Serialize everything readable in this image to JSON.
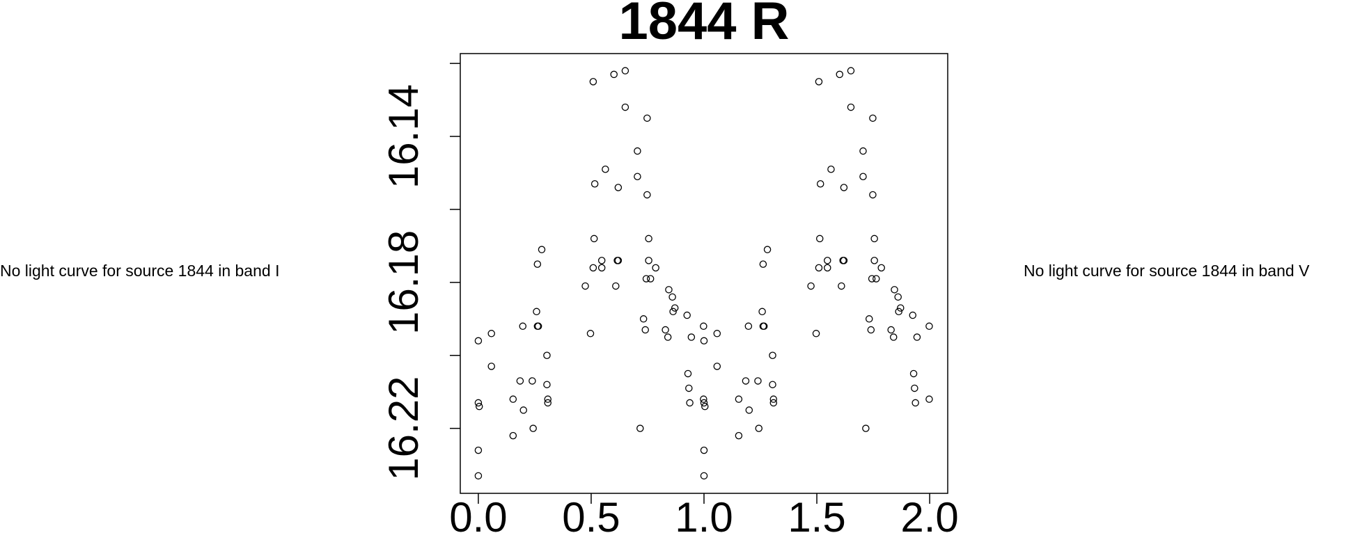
{
  "chart_data": {
    "type": "scatter",
    "title": "1844 R",
    "annotations": [
      "No light curve for source 1844 in band I",
      "No light curve for source 1844 in band V"
    ],
    "color": "#000000",
    "marker": "open-circle",
    "xlim": [
      -0.08,
      2.08
    ],
    "ylim": [
      16.2378,
      16.1173
    ],
    "xticks": [
      {
        "value": 0,
        "label": "0.0"
      },
      0.5,
      {
        "value": 1,
        "label": "1.0"
      },
      1.5,
      {
        "value": 2,
        "label": "2.0"
      }
    ],
    "yticks": [
      16.14,
      16.18,
      16.22
    ],
    "yminor_ticks": [
      16.12,
      16.16,
      16.2
    ],
    "x": [
      0,
      0,
      0.004,
      0,
      0,
      0.058,
      0.058,
      0.154,
      0.154,
      0.185,
      0.197,
      0.2,
      0.239,
      0.243,
      0.258,
      0.262,
      0.266,
      0.262,
      0.281,
      0.304,
      0.304,
      0.308,
      0.308,
      0.474,
      0.497,
      0.509,
      0.513,
      0.509,
      0.516,
      0.547,
      0.547,
      0.563,
      0.601,
      0.609,
      0.616,
      0.62,
      0.62,
      0.651,
      0.651,
      0.705,
      0.705,
      0.717,
      0.732,
      0.74,
      0.744,
      0.748,
      0.748,
      0.755,
      0.755,
      0.763,
      0.786,
      0.829,
      0.84,
      0.844,
      0.86,
      0.863,
      0.871,
      0.925,
      0.929,
      0.933,
      0.937,
      0.944,
      0.998,
      0.998,
      1,
      1,
      1.004,
      1,
      1,
      1.058,
      1.058,
      1.154,
      1.154,
      1.185,
      1.197,
      1.2,
      1.239,
      1.243,
      1.258,
      1.262,
      1.266,
      1.262,
      1.281,
      1.304,
      1.304,
      1.308,
      1.308,
      1.474,
      1.497,
      1.509,
      1.513,
      1.509,
      1.516,
      1.547,
      1.547,
      1.563,
      1.601,
      1.609,
      1.616,
      1.62,
      1.62,
      1.651,
      1.651,
      1.705,
      1.705,
      1.717,
      1.732,
      1.74,
      1.744,
      1.748,
      1.748,
      1.755,
      1.755,
      1.763,
      1.786,
      1.829,
      1.84,
      1.844,
      1.86,
      1.863,
      1.871,
      1.925,
      1.929,
      1.933,
      1.937,
      1.944,
      1.998,
      1.998
    ],
    "values": [
      16.196,
      16.213,
      16.214,
      16.226,
      16.233,
      16.194,
      16.203,
      16.212,
      16.222,
      16.207,
      16.192,
      16.215,
      16.207,
      16.22,
      16.188,
      16.192,
      16.192,
      16.175,
      16.171,
      16.2,
      16.208,
      16.212,
      16.213,
      16.181,
      16.194,
      16.125,
      16.168,
      16.176,
      16.153,
      16.174,
      16.176,
      16.149,
      16.123,
      16.181,
      16.174,
      16.174,
      16.154,
      16.122,
      16.132,
      16.144,
      16.151,
      16.22,
      16.19,
      16.193,
      16.179,
      16.135,
      16.156,
      16.168,
      16.174,
      16.179,
      16.176,
      16.193,
      16.195,
      16.182,
      16.184,
      16.188,
      16.187,
      16.189,
      16.205,
      16.209,
      16.213,
      16.195,
      16.192,
      16.212,
      16.196,
      16.213,
      16.214,
      16.226,
      16.233,
      16.194,
      16.203,
      16.212,
      16.222,
      16.207,
      16.192,
      16.215,
      16.207,
      16.22,
      16.188,
      16.192,
      16.192,
      16.175,
      16.171,
      16.2,
      16.208,
      16.212,
      16.213,
      16.181,
      16.194,
      16.125,
      16.168,
      16.176,
      16.153,
      16.174,
      16.176,
      16.149,
      16.123,
      16.181,
      16.174,
      16.174,
      16.154,
      16.122,
      16.132,
      16.144,
      16.151,
      16.22,
      16.19,
      16.193,
      16.179,
      16.135,
      16.156,
      16.168,
      16.174,
      16.179,
      16.176,
      16.193,
      16.195,
      16.182,
      16.184,
      16.188,
      16.187,
      16.189,
      16.205,
      16.209,
      16.213,
      16.195,
      16.192,
      16.212
    ]
  }
}
